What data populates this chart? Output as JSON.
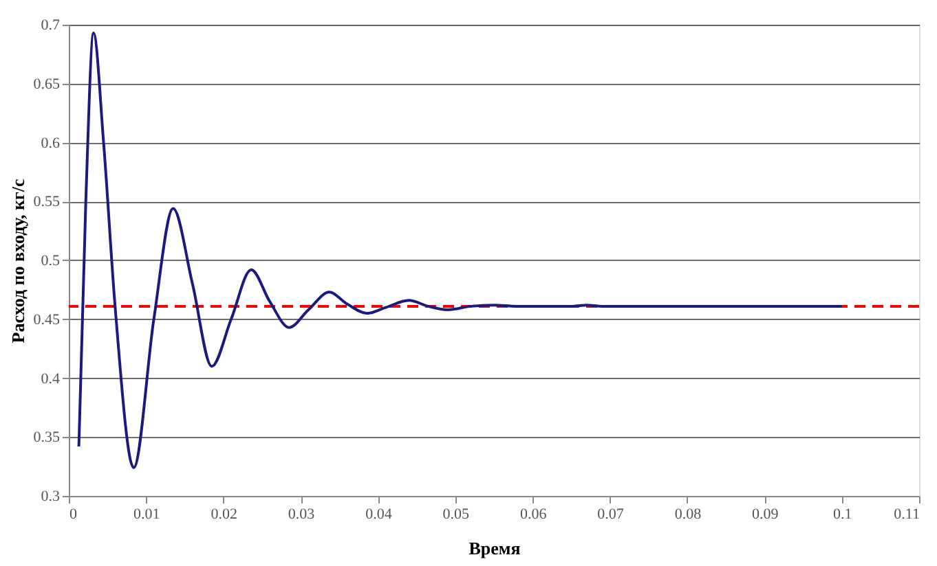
{
  "chart_data": {
    "type": "line",
    "xlabel": "Время",
    "ylabel": "Расход по входу, кг/с",
    "x": [
      0.0013,
      0.0022,
      0.0032,
      0.0045,
      0.006,
      0.0084,
      0.011,
      0.0135,
      0.016,
      0.0185,
      0.021,
      0.0236,
      0.026,
      0.0285,
      0.031,
      0.0337,
      0.036,
      0.0386,
      0.041,
      0.044,
      0.0465,
      0.049,
      0.052,
      0.055,
      0.058,
      0.065,
      0.067,
      0.069,
      0.08,
      0.09,
      0.1
    ],
    "series": [
      {
        "color": "#1a1a80",
        "values": [
          0.342,
          0.55,
          0.693,
          0.6,
          0.46,
          0.324,
          0.45,
          0.544,
          0.48,
          0.41,
          0.45,
          0.492,
          0.465,
          0.443,
          0.458,
          0.473,
          0.463,
          0.455,
          0.46,
          0.466,
          0.461,
          0.458,
          0.461,
          0.462,
          0.461,
          0.461,
          0.462,
          0.461,
          0.461,
          0.461,
          0.461
        ]
      }
    ],
    "xlim": [
      0,
      0.11
    ],
    "xticks": [
      0,
      0.01,
      0.02,
      0.03,
      0.04,
      0.05,
      0.06,
      0.07,
      0.08,
      0.09,
      0.1,
      0.11
    ],
    "ylim": [
      0.3,
      0.7
    ],
    "yticks": [
      0.3,
      0.35,
      0.4,
      0.45,
      0.5,
      0.55,
      0.6,
      0.65,
      0.7
    ],
    "grid": "y",
    "line_style": "solid",
    "marker": "none",
    "ref_lines": [
      {
        "axis": "y",
        "value": 0.461,
        "color": "#ff0000",
        "line_style": "dashed"
      }
    ]
  }
}
